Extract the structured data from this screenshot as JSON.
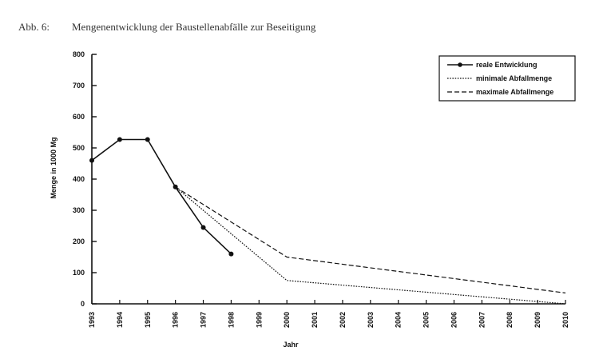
{
  "caption": {
    "label": "Abb. 6:",
    "title": "Mengenentwicklung der Baustellenabfälle zur Beseitigung"
  },
  "chart_data": {
    "type": "line",
    "xlabel": "Jahr",
    "ylabel": "Menge in 1000 Mg",
    "x": [
      1993,
      1994,
      1995,
      1996,
      1997,
      1998,
      1999,
      2000,
      2001,
      2002,
      2003,
      2004,
      2005,
      2006,
      2007,
      2008,
      2009,
      2010
    ],
    "xlim": [
      1993,
      2010
    ],
    "ylim": [
      0,
      800
    ],
    "yticks": [
      0,
      100,
      200,
      300,
      400,
      500,
      600,
      700,
      800
    ],
    "grid": false,
    "legend_position": "top-right",
    "series": [
      {
        "name": "reale Entwicklung",
        "style": "solid-markers",
        "x": [
          1993,
          1994,
          1995,
          1996,
          1997,
          1998
        ],
        "y": [
          460,
          527,
          527,
          375,
          245,
          160
        ]
      },
      {
        "name": "minimale Abfallmenge",
        "style": "dotted",
        "x": [
          1996,
          2000,
          2010
        ],
        "y": [
          375,
          75,
          0
        ]
      },
      {
        "name": "maximale Abfallmenge",
        "style": "dashed",
        "x": [
          1996,
          2000,
          2010
        ],
        "y": [
          375,
          150,
          35
        ]
      }
    ]
  }
}
